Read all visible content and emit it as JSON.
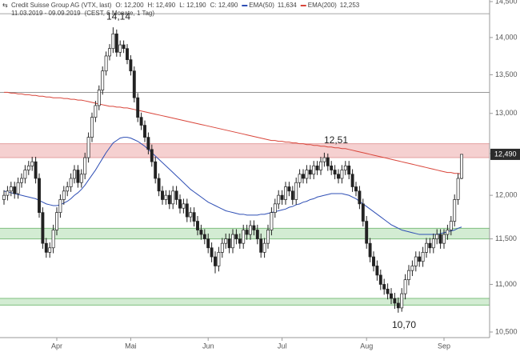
{
  "chart_data": {
    "type": "candlestick",
    "header": {
      "name": "Credit Suisse Group AG (VTX, last)",
      "ohlc": [
        "O: 12,200",
        "H: 12,490",
        "L: 12,190",
        "C: 12,490"
      ],
      "range": "11.03.2019 - 09.09.2019",
      "period": "(CEST, 6 Monate, 1 Tag)"
    },
    "log_scale": true,
    "grid": false,
    "ylim": [
      10.5,
      14.5
    ],
    "yticks": [
      {
        "value": 10.5,
        "label": "10,500"
      },
      {
        "value": 11,
        "label": "11,000"
      },
      {
        "value": 11.5,
        "label": "11,500"
      },
      {
        "value": 12,
        "label": "12,000"
      },
      {
        "value": 12.5,
        "label": "12,500"
      },
      {
        "value": 13,
        "label": "13,000"
      },
      {
        "value": 13.5,
        "label": "13,500"
      },
      {
        "value": 14,
        "label": "14,000"
      },
      {
        "value": 14.5,
        "label": "14,500"
      }
    ],
    "categories": [
      null,
      null,
      null,
      null,
      null,
      null,
      null,
      null,
      null,
      null,
      null,
      null,
      null,
      null,
      null,
      "Apr",
      null,
      null,
      null,
      null,
      null,
      null,
      null,
      null,
      null,
      null,
      null,
      null,
      null,
      null,
      null,
      null,
      null,
      null,
      null,
      null,
      "Mai",
      null,
      null,
      null,
      null,
      null,
      null,
      null,
      null,
      null,
      null,
      null,
      null,
      null,
      null,
      null,
      null,
      null,
      null,
      null,
      null,
      null,
      "Jun",
      null,
      null,
      null,
      null,
      null,
      null,
      null,
      null,
      null,
      null,
      null,
      null,
      null,
      null,
      null,
      null,
      null,
      null,
      null,
      null,
      "Jul",
      null,
      null,
      null,
      null,
      null,
      null,
      null,
      null,
      null,
      null,
      null,
      null,
      null,
      null,
      null,
      null,
      null,
      null,
      null,
      null,
      null,
      null,
      null,
      "Aug",
      null,
      null,
      null,
      null,
      null,
      null,
      null,
      null,
      null,
      null,
      null,
      null,
      null,
      null,
      null,
      null,
      null,
      null,
      null,
      null,
      null,
      "Sep",
      null,
      null,
      null,
      null,
      null
    ],
    "ohlc": [
      [
        11.95,
        12.06,
        11.89,
        12.0
      ],
      [
        12.0,
        12.11,
        11.94,
        12.05
      ],
      [
        12.05,
        12.16,
        11.99,
        12.1
      ],
      [
        12.1,
        12.16,
        11.96,
        12.02
      ],
      [
        12.02,
        12.21,
        11.96,
        12.15
      ],
      [
        12.15,
        12.26,
        12.09,
        12.2
      ],
      [
        12.2,
        12.36,
        12.14,
        12.3
      ],
      [
        12.3,
        12.41,
        12.24,
        12.35
      ],
      [
        12.35,
        12.46,
        12.29,
        12.4
      ],
      [
        12.4,
        12.46,
        12.14,
        12.2
      ],
      [
        12.2,
        12.26,
        11.74,
        11.8
      ],
      [
        11.8,
        11.86,
        11.39,
        11.45
      ],
      [
        11.45,
        11.51,
        11.29,
        11.35
      ],
      [
        11.35,
        11.46,
        11.29,
        11.4
      ],
      [
        11.4,
        11.66,
        11.34,
        11.6
      ],
      [
        11.6,
        11.86,
        11.54,
        11.8
      ],
      [
        11.8,
        12.01,
        11.74,
        11.95
      ],
      [
        11.95,
        12.11,
        11.89,
        12.05
      ],
      [
        12.05,
        12.16,
        11.99,
        12.1
      ],
      [
        12.1,
        12.26,
        12.04,
        12.2
      ],
      [
        12.2,
        12.36,
        12.14,
        12.3
      ],
      [
        12.3,
        12.36,
        12.09,
        12.15
      ],
      [
        12.15,
        12.31,
        12.09,
        12.25
      ],
      [
        12.25,
        12.51,
        12.19,
        12.45
      ],
      [
        12.45,
        12.76,
        12.39,
        12.7
      ],
      [
        12.7,
        13.01,
        12.64,
        12.95
      ],
      [
        12.95,
        13.16,
        12.89,
        13.1
      ],
      [
        13.1,
        13.36,
        13.04,
        13.3
      ],
      [
        13.3,
        13.61,
        13.24,
        13.55
      ],
      [
        13.55,
        13.81,
        13.49,
        13.75
      ],
      [
        13.75,
        13.91,
        13.69,
        13.85
      ],
      [
        13.85,
        14.14,
        13.79,
        14.05
      ],
      [
        14.05,
        14.11,
        13.74,
        13.8
      ],
      [
        13.8,
        13.96,
        13.74,
        13.9
      ],
      [
        13.9,
        13.96,
        13.79,
        13.85
      ],
      [
        13.85,
        13.91,
        13.64,
        13.7
      ],
      [
        13.7,
        13.76,
        13.49,
        13.55
      ],
      [
        13.55,
        13.61,
        13.14,
        13.2
      ],
      [
        13.2,
        13.26,
        12.89,
        12.95
      ],
      [
        12.95,
        13.01,
        12.79,
        12.85
      ],
      [
        12.85,
        12.91,
        12.64,
        12.7
      ],
      [
        12.7,
        12.76,
        12.49,
        12.55
      ],
      [
        12.55,
        12.61,
        12.34,
        12.4
      ],
      [
        12.4,
        12.46,
        12.14,
        12.2
      ],
      [
        12.2,
        12.26,
        11.99,
        12.05
      ],
      [
        12.05,
        12.11,
        11.89,
        11.95
      ],
      [
        11.95,
        12.06,
        11.89,
        12.0
      ],
      [
        12.0,
        12.06,
        11.84,
        11.9
      ],
      [
        11.9,
        12.11,
        11.84,
        12.05
      ],
      [
        12.05,
        12.11,
        11.89,
        11.95
      ],
      [
        11.95,
        12.01,
        11.79,
        11.85
      ],
      [
        11.85,
        11.96,
        11.79,
        11.9
      ],
      [
        11.9,
        11.96,
        11.69,
        11.75
      ],
      [
        11.75,
        11.86,
        11.69,
        11.8
      ],
      [
        11.8,
        11.86,
        11.64,
        11.7
      ],
      [
        11.7,
        11.76,
        11.54,
        11.6
      ],
      [
        11.6,
        11.66,
        11.49,
        11.55
      ],
      [
        11.55,
        11.61,
        11.44,
        11.5
      ],
      [
        11.5,
        11.56,
        11.34,
        11.4
      ],
      [
        11.4,
        11.46,
        11.24,
        11.3
      ],
      [
        11.3,
        11.36,
        11.12,
        11.2
      ],
      [
        11.2,
        11.41,
        11.14,
        11.35
      ],
      [
        11.35,
        11.51,
        11.29,
        11.45
      ],
      [
        11.45,
        11.56,
        11.39,
        11.5
      ],
      [
        11.5,
        11.56,
        11.34,
        11.4
      ],
      [
        11.4,
        11.61,
        11.34,
        11.55
      ],
      [
        11.55,
        11.61,
        11.44,
        11.5
      ],
      [
        11.5,
        11.56,
        11.39,
        11.45
      ],
      [
        11.45,
        11.66,
        11.39,
        11.6
      ],
      [
        11.6,
        11.66,
        11.49,
        11.55
      ],
      [
        11.55,
        11.71,
        11.49,
        11.65
      ],
      [
        11.65,
        11.71,
        11.54,
        11.6
      ],
      [
        11.6,
        11.66,
        11.44,
        11.5
      ],
      [
        11.5,
        11.56,
        11.29,
        11.35
      ],
      [
        11.35,
        11.51,
        11.29,
        11.45
      ],
      [
        11.45,
        11.66,
        11.39,
        11.6
      ],
      [
        11.6,
        11.86,
        11.54,
        11.8
      ],
      [
        11.8,
        11.96,
        11.74,
        11.9
      ],
      [
        11.9,
        12.06,
        11.84,
        12.0
      ],
      [
        12.0,
        12.06,
        11.89,
        11.95
      ],
      [
        11.95,
        12.16,
        11.89,
        12.1
      ],
      [
        12.1,
        12.16,
        11.99,
        12.05
      ],
      [
        12.05,
        12.11,
        11.89,
        11.95
      ],
      [
        11.95,
        12.21,
        11.89,
        12.15
      ],
      [
        12.15,
        12.31,
        12.09,
        12.25
      ],
      [
        12.25,
        12.31,
        12.14,
        12.2
      ],
      [
        12.2,
        12.36,
        12.14,
        12.3
      ],
      [
        12.3,
        12.36,
        12.19,
        12.25
      ],
      [
        12.25,
        12.41,
        12.19,
        12.35
      ],
      [
        12.35,
        12.41,
        12.24,
        12.3
      ],
      [
        12.3,
        12.46,
        12.24,
        12.4
      ],
      [
        12.4,
        12.51,
        12.34,
        12.45
      ],
      [
        12.45,
        12.5,
        12.29,
        12.35
      ],
      [
        12.35,
        12.41,
        12.24,
        12.3
      ],
      [
        12.3,
        12.36,
        12.19,
        12.25
      ],
      [
        12.25,
        12.31,
        12.14,
        12.2
      ],
      [
        12.2,
        12.36,
        12.14,
        12.3
      ],
      [
        12.3,
        12.41,
        12.24,
        12.35
      ],
      [
        12.35,
        12.41,
        12.19,
        12.25
      ],
      [
        12.25,
        12.31,
        12.04,
        12.1
      ],
      [
        12.1,
        12.16,
        11.99,
        12.05
      ],
      [
        12.05,
        12.11,
        11.84,
        11.9
      ],
      [
        11.9,
        11.96,
        11.64,
        11.7
      ],
      [
        11.7,
        11.76,
        11.39,
        11.45
      ],
      [
        11.45,
        11.51,
        11.24,
        11.3
      ],
      [
        11.3,
        11.36,
        11.14,
        11.2
      ],
      [
        11.2,
        11.26,
        11.04,
        11.1
      ],
      [
        11.1,
        11.16,
        10.94,
        11.0
      ],
      [
        11.0,
        11.06,
        10.89,
        10.95
      ],
      [
        10.95,
        11.01,
        10.84,
        10.9
      ],
      [
        10.9,
        10.96,
        10.79,
        10.85
      ],
      [
        10.85,
        10.91,
        10.74,
        10.8
      ],
      [
        10.8,
        10.86,
        10.7,
        10.75
      ],
      [
        10.75,
        10.96,
        10.71,
        10.9
      ],
      [
        10.9,
        11.11,
        10.84,
        11.05
      ],
      [
        11.05,
        11.21,
        10.99,
        11.15
      ],
      [
        11.15,
        11.26,
        11.09,
        11.2
      ],
      [
        11.2,
        11.36,
        11.14,
        11.3
      ],
      [
        11.3,
        11.36,
        11.19,
        11.25
      ],
      [
        11.25,
        11.41,
        11.19,
        11.35
      ],
      [
        11.35,
        11.51,
        11.29,
        11.45
      ],
      [
        11.45,
        11.51,
        11.34,
        11.4
      ],
      [
        11.4,
        11.56,
        11.34,
        11.5
      ],
      [
        11.5,
        11.61,
        11.44,
        11.55
      ],
      [
        11.55,
        11.61,
        11.39,
        11.45
      ],
      [
        11.45,
        11.61,
        11.39,
        11.55
      ],
      [
        11.55,
        11.66,
        11.49,
        11.6
      ],
      [
        11.6,
        11.76,
        11.54,
        11.7
      ],
      [
        11.7,
        12.01,
        11.64,
        11.95
      ],
      [
        11.95,
        12.26,
        11.89,
        12.2
      ],
      [
        12.2,
        12.49,
        12.19,
        12.49
      ]
    ],
    "series": [
      {
        "name": "EMA(50)",
        "color": "#2f4fb5",
        "value_label": "11,634",
        "values": [
          12.05,
          12.04,
          12.03,
          12.02,
          12.01,
          12.0,
          11.99,
          11.98,
          11.97,
          11.96,
          11.94,
          11.92,
          11.9,
          11.89,
          11.88,
          11.88,
          11.89,
          11.91,
          11.93,
          11.96,
          12.0,
          12.03,
          12.07,
          12.12,
          12.18,
          12.24,
          12.3,
          12.37,
          12.44,
          12.51,
          12.57,
          12.63,
          12.66,
          12.69,
          12.7,
          12.7,
          12.69,
          12.67,
          12.65,
          12.62,
          12.59,
          12.55,
          12.51,
          12.47,
          12.43,
          12.39,
          12.35,
          12.31,
          12.27,
          12.23,
          12.19,
          12.15,
          12.11,
          12.07,
          12.04,
          12.01,
          11.98,
          11.95,
          11.92,
          11.9,
          11.88,
          11.86,
          11.84,
          11.82,
          11.81,
          11.8,
          11.79,
          11.78,
          11.78,
          11.77,
          11.77,
          11.77,
          11.77,
          11.78,
          11.78,
          11.79,
          11.8,
          11.81,
          11.82,
          11.83,
          11.84,
          11.86,
          11.87,
          11.89,
          11.9,
          11.92,
          11.93,
          11.95,
          11.96,
          11.98,
          11.99,
          12.0,
          12.01,
          12.02,
          12.02,
          12.02,
          12.02,
          12.01,
          12.0,
          11.98,
          11.96,
          11.93,
          11.9,
          11.87,
          11.84,
          11.81,
          11.78,
          11.75,
          11.72,
          11.69,
          11.66,
          11.64,
          11.62,
          11.6,
          11.59,
          11.58,
          11.57,
          11.56,
          11.55,
          11.55,
          11.55,
          11.55,
          11.55,
          11.55,
          11.56,
          11.57,
          11.58,
          11.59,
          11.6,
          11.62,
          11.634
        ]
      },
      {
        "name": "EMA(200)",
        "color": "#d9453a",
        "value_label": "12,253",
        "values": [
          13.27,
          13.27,
          13.26,
          13.26,
          13.25,
          13.25,
          13.24,
          13.24,
          13.23,
          13.23,
          13.22,
          13.22,
          13.21,
          13.21,
          13.2,
          13.2,
          13.2,
          13.19,
          13.19,
          13.18,
          13.18,
          13.17,
          13.17,
          13.16,
          13.15,
          13.14,
          13.13,
          13.12,
          13.11,
          13.1,
          13.09,
          13.09,
          13.08,
          13.08,
          13.07,
          13.07,
          13.06,
          13.05,
          13.04,
          13.03,
          13.02,
          13.01,
          13.0,
          12.99,
          12.98,
          12.97,
          12.96,
          12.95,
          12.94,
          12.93,
          12.92,
          12.91,
          12.9,
          12.89,
          12.88,
          12.87,
          12.86,
          12.85,
          12.84,
          12.83,
          12.82,
          12.81,
          12.8,
          12.79,
          12.78,
          12.77,
          12.76,
          12.75,
          12.74,
          12.73,
          12.72,
          12.71,
          12.7,
          12.69,
          12.68,
          12.67,
          12.66,
          12.66,
          12.65,
          12.65,
          12.64,
          12.64,
          12.63,
          12.63,
          12.62,
          12.62,
          12.61,
          12.61,
          12.6,
          12.6,
          12.59,
          12.59,
          12.58,
          12.58,
          12.57,
          12.57,
          12.56,
          12.56,
          12.55,
          12.54,
          12.53,
          12.52,
          12.51,
          12.5,
          12.49,
          12.48,
          12.47,
          12.46,
          12.45,
          12.44,
          12.43,
          12.42,
          12.41,
          12.4,
          12.39,
          12.38,
          12.37,
          12.36,
          12.35,
          12.34,
          12.33,
          12.32,
          12.31,
          12.3,
          12.29,
          12.28,
          12.27,
          12.27,
          12.26,
          12.26,
          12.253
        ]
      }
    ],
    "zones": [
      {
        "from": 12.45,
        "to": 12.62,
        "color": "#f5d0d0",
        "border": "#e4a0a0"
      },
      {
        "from": 11.5,
        "to": 11.62,
        "color": "#d3ecd3",
        "border": "#7fbf7f"
      },
      {
        "from": 10.78,
        "to": 10.85,
        "color": "#d3ecd3",
        "border": "#7fbf7f"
      }
    ],
    "lines": [
      14.33,
      13.27
    ],
    "last_price": {
      "value": 12.49,
      "label": "12,490"
    },
    "annotations": [
      {
        "value": 14.14,
        "label": "14,14"
      },
      {
        "value": 12.51,
        "label": "12,51"
      },
      {
        "value": 10.7,
        "label": "10,70"
      }
    ]
  }
}
